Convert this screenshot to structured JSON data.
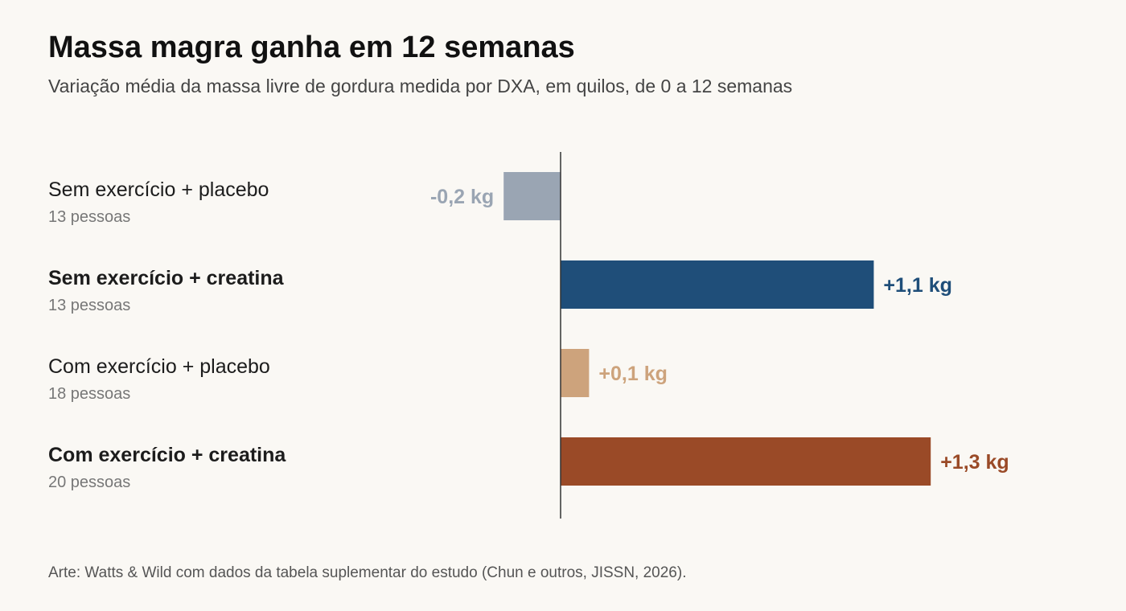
{
  "title": "Massa magra ganha em 12 semanas",
  "subtitle": "Variação média da massa livre de gordura medida por DXA, em quilos, de 0 a 12 semanas",
  "footer": "Arte: Watts & Wild com dados da tabela suplementar do estudo (Chun e outros, JISSN, 2026).",
  "chart_data": {
    "type": "bar",
    "orientation": "horizontal",
    "unit": "kg",
    "baseline": 0,
    "xlim": [
      -0.5,
      1.5
    ],
    "grid": false,
    "legend": "none",
    "categories": [
      "Sem exercício + placebo",
      "Sem exercício + creatina",
      "Com exercício + placebo",
      "Com exercício + creatina"
    ],
    "sample_sizes": [
      "13 pessoas",
      "13 pessoas",
      "18 pessoas",
      "20 pessoas"
    ],
    "highlight": [
      false,
      true,
      false,
      true
    ],
    "values": [
      -0.2,
      1.1,
      0.1,
      1.3
    ],
    "value_labels": [
      "-0,2 kg",
      "+1,1 kg",
      "+0,1 kg",
      "+1,3 kg"
    ],
    "colors": [
      "#9aa5b3",
      "#1f4e79",
      "#cda37c",
      "#9a4a27"
    ]
  }
}
